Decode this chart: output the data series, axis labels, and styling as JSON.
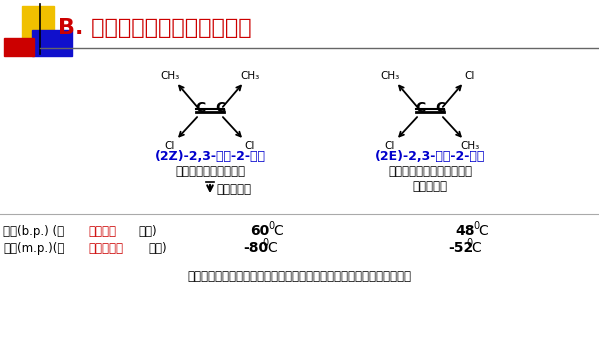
{
  "bg_color": "#ffffff",
  "title": "B. 顺反异构对物理性质的影响",
  "title_color": "#cc0000",
  "title_fontsize": 16,
  "mol1_name": "(2Z)-2,3-二氯-2-丁烯",
  "mol2_name": "(2E)-2,3-二氯-2-丁烯",
  "mol_name_color": "#0000cc",
  "mol1_desc1": "极性分子，含有对称面",
  "mol1_dipole": "↓偶极矩方向",
  "mol2_desc1": "非极性分子，含有对称中心",
  "mol2_desc2": "偶极矩为零",
  "red_color": "#cc0000",
  "black_color": "#000000",
  "bp_prefix": "沸点(b.p.) (与",
  "bp_red": "分子极性",
  "bp_suffix": "有关)",
  "mp_prefix": "熔点(m.p.)(与",
  "mp_red": "分子对称性",
  "mp_suffix": "有关)",
  "bp_val1": "60",
  "bp_val2": "48",
  "mp_val1": "-80",
  "mp_val2": "-52",
  "footer": "极性大分子间作用力强，沸点升高；对称性好，分子晶格能高，熔点高。"
}
